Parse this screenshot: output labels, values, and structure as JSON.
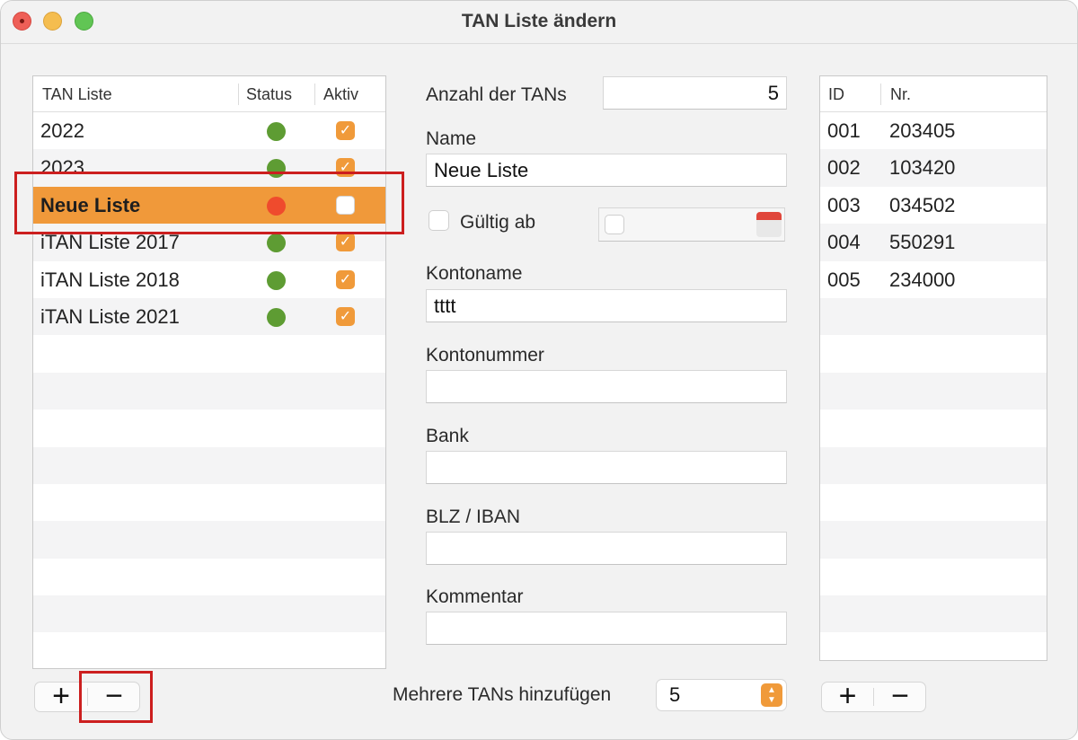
{
  "window": {
    "title": "TAN Liste ändern"
  },
  "tan_lists": {
    "columns": [
      "TAN Liste",
      "Status",
      "Aktiv"
    ],
    "rows": [
      {
        "name": "2022",
        "status": "green",
        "active": true
      },
      {
        "name": "2023",
        "status": "green",
        "active": true
      },
      {
        "name": "Neue Liste",
        "status": "red",
        "active": false,
        "selected": true
      },
      {
        "name": "iTAN Liste 2017",
        "status": "green",
        "active": true
      },
      {
        "name": "iTAN Liste 2018",
        "status": "green",
        "active": true
      },
      {
        "name": "iTAN Liste 2021",
        "status": "green",
        "active": true
      }
    ]
  },
  "form": {
    "count_label": "Anzahl der TANs",
    "count_value": "5",
    "name_label": "Name",
    "name_value": "Neue Liste",
    "valid_from_label": "Gültig ab",
    "valid_from_checked": false,
    "account_name_label": "Kontoname",
    "account_name_value": "tttt",
    "account_number_label": "Kontonummer",
    "account_number_value": "",
    "bank_label": "Bank",
    "bank_value": "",
    "blz_label": "BLZ / IBAN",
    "blz_value": "",
    "comment_label": "Kommentar",
    "comment_value": ""
  },
  "tans": {
    "columns": [
      "ID",
      "Nr."
    ],
    "rows": [
      {
        "id": "001",
        "nr": "203405"
      },
      {
        "id": "002",
        "nr": "103420"
      },
      {
        "id": "003",
        "nr": "034502"
      },
      {
        "id": "004",
        "nr": "550291"
      },
      {
        "id": "005",
        "nr": "234000"
      }
    ]
  },
  "bottom": {
    "add_symbol": "+",
    "remove_symbol": "−",
    "multi_label": "Mehrere TANs hinzufügen",
    "multi_value": "5"
  },
  "colors": {
    "accent": "#f0993a",
    "ok": "#5e9c33",
    "error": "#ef4b2d",
    "annotation": "#cc1f1f"
  },
  "icons": {
    "close": "close-icon",
    "minimize": "minimize-icon",
    "zoom": "zoom-icon",
    "calendar": "calendar-icon",
    "check": "checkmark-icon"
  }
}
